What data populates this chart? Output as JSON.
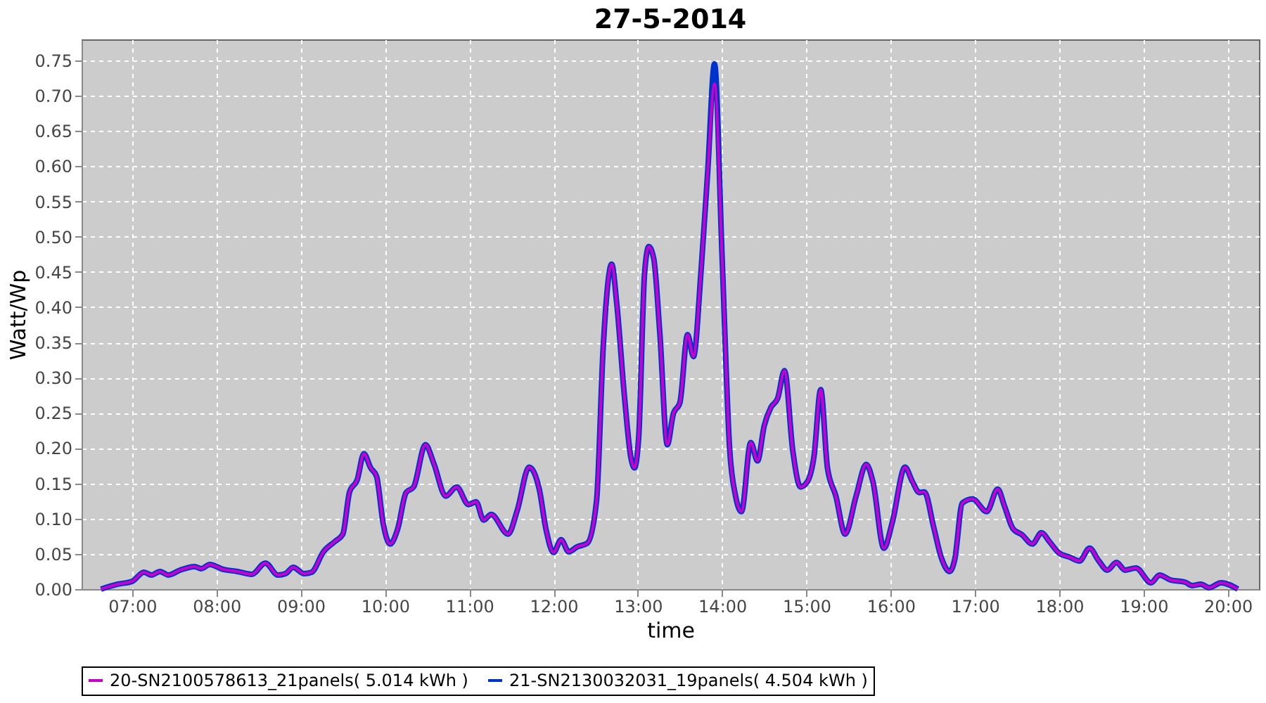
{
  "chart_data": {
    "type": "line",
    "title": "27-5-2014",
    "xlabel": "time",
    "ylabel": "Watt/Wp",
    "xlim": [
      6.4,
      20.37
    ],
    "ylim": [
      0,
      0.78
    ],
    "xticks": [
      {
        "value": 7,
        "label": "07:00"
      },
      {
        "value": 8,
        "label": "08:00"
      },
      {
        "value": 9,
        "label": "09:00"
      },
      {
        "value": 10,
        "label": "10:00"
      },
      {
        "value": 11,
        "label": "11:00"
      },
      {
        "value": 12,
        "label": "12:00"
      },
      {
        "value": 13,
        "label": "13:00"
      },
      {
        "value": 14,
        "label": "14:00"
      },
      {
        "value": 15,
        "label": "15:00"
      },
      {
        "value": 16,
        "label": "16:00"
      },
      {
        "value": 17,
        "label": "17:00"
      },
      {
        "value": 18,
        "label": "18:00"
      },
      {
        "value": 19,
        "label": "19:00"
      },
      {
        "value": 20,
        "label": "20:00"
      }
    ],
    "yticks": [
      {
        "value": 0,
        "label": "0.00"
      },
      0.05,
      {
        "value": 0.1,
        "label": "0.10"
      },
      0.15,
      {
        "value": 0.2,
        "label": "0.20"
      },
      0.25,
      {
        "value": 0.3,
        "label": "0.30"
      },
      0.35,
      {
        "value": 0.4,
        "label": "0.40"
      },
      0.45,
      {
        "value": 0.5,
        "label": "0.50"
      },
      0.55,
      {
        "value": 0.6,
        "label": "0.60"
      },
      0.65,
      {
        "value": 0.7,
        "label": "0.70"
      },
      0.75
    ],
    "x": [
      6.63,
      6.83,
      7.0,
      7.14,
      7.23,
      7.33,
      7.43,
      7.57,
      7.74,
      7.82,
      7.92,
      8.08,
      8.25,
      8.42,
      8.58,
      8.73,
      8.82,
      8.91,
      9.04,
      9.13,
      9.27,
      9.41,
      9.5,
      9.58,
      9.67,
      9.75,
      9.83,
      9.9,
      9.98,
      10.06,
      10.15,
      10.25,
      10.34,
      10.48,
      10.58,
      10.72,
      10.85,
      10.99,
      11.08,
      11.17,
      11.26,
      11.46,
      11.57,
      11.71,
      11.83,
      11.91,
      12.0,
      12.09,
      12.18,
      12.28,
      12.4,
      12.51,
      12.59,
      12.69,
      12.75,
      12.84,
      12.92,
      12.96,
      13.01,
      13.08,
      13.13,
      13.19,
      13.26,
      13.35,
      13.42,
      13.5,
      13.59,
      13.66,
      13.75,
      13.83,
      13.91,
      14.0,
      14.09,
      14.16,
      14.23,
      14.34,
      14.42,
      14.5,
      14.58,
      14.66,
      14.74,
      14.84,
      14.93,
      15.01,
      15.09,
      15.17,
      15.25,
      15.35,
      15.46,
      15.59,
      15.71,
      15.79,
      15.92,
      16.02,
      16.17,
      16.26,
      16.34,
      16.4,
      16.51,
      16.6,
      16.7,
      16.76,
      16.85,
      16.97,
      17.14,
      17.27,
      17.35,
      17.45,
      17.56,
      17.68,
      17.79,
      17.88,
      17.99,
      18.13,
      18.24,
      18.36,
      18.47,
      18.57,
      18.68,
      18.78,
      18.91,
      19.09,
      19.19,
      19.32,
      19.49,
      19.58,
      19.68,
      19.78,
      19.92,
      20.12
    ],
    "series": [
      {
        "name": "20-SN2100578613_21panels( 5.014 kWh )",
        "color": "#cc00cc",
        "values": [
          0.0,
          0.007,
          0.011,
          0.024,
          0.02,
          0.025,
          0.02,
          0.027,
          0.032,
          0.029,
          0.035,
          0.028,
          0.025,
          0.021,
          0.037,
          0.02,
          0.022,
          0.031,
          0.022,
          0.024,
          0.053,
          0.068,
          0.078,
          0.138,
          0.155,
          0.192,
          0.172,
          0.16,
          0.092,
          0.064,
          0.085,
          0.137,
          0.145,
          0.205,
          0.178,
          0.132,
          0.145,
          0.12,
          0.124,
          0.098,
          0.106,
          0.078,
          0.112,
          0.173,
          0.142,
          0.085,
          0.052,
          0.07,
          0.053,
          0.06,
          0.065,
          0.125,
          0.345,
          0.461,
          0.405,
          0.275,
          0.185,
          0.172,
          0.215,
          0.448,
          0.486,
          0.468,
          0.365,
          0.205,
          0.248,
          0.265,
          0.361,
          0.33,
          0.451,
          0.594,
          0.717,
          0.471,
          0.198,
          0.132,
          0.11,
          0.208,
          0.182,
          0.232,
          0.258,
          0.271,
          0.31,
          0.195,
          0.145,
          0.152,
          0.188,
          0.283,
          0.172,
          0.132,
          0.078,
          0.132,
          0.177,
          0.152,
          0.058,
          0.095,
          0.173,
          0.152,
          0.137,
          0.138,
          0.088,
          0.045,
          0.025,
          0.042,
          0.122,
          0.128,
          0.11,
          0.142,
          0.118,
          0.086,
          0.077,
          0.064,
          0.08,
          0.068,
          0.052,
          0.045,
          0.04,
          0.058,
          0.04,
          0.027,
          0.038,
          0.027,
          0.03,
          0.009,
          0.02,
          0.013,
          0.01,
          0.005,
          0.007,
          0.002,
          0.009,
          0.0
        ]
      },
      {
        "name": "21-SN2130032031_19panels( 4.504 kWh )",
        "color": "#0033cc",
        "values": [
          0.0,
          0.007,
          0.011,
          0.024,
          0.02,
          0.025,
          0.02,
          0.027,
          0.032,
          0.029,
          0.035,
          0.028,
          0.025,
          0.021,
          0.037,
          0.02,
          0.022,
          0.031,
          0.022,
          0.024,
          0.053,
          0.068,
          0.078,
          0.138,
          0.155,
          0.192,
          0.172,
          0.16,
          0.092,
          0.064,
          0.085,
          0.137,
          0.145,
          0.205,
          0.178,
          0.132,
          0.145,
          0.12,
          0.124,
          0.098,
          0.106,
          0.078,
          0.112,
          0.173,
          0.142,
          0.085,
          0.052,
          0.07,
          0.053,
          0.06,
          0.065,
          0.125,
          0.345,
          0.461,
          0.405,
          0.275,
          0.185,
          0.172,
          0.215,
          0.448,
          0.486,
          0.468,
          0.365,
          0.205,
          0.248,
          0.265,
          0.361,
          0.33,
          0.451,
          0.594,
          0.745,
          0.471,
          0.198,
          0.132,
          0.11,
          0.208,
          0.182,
          0.232,
          0.258,
          0.271,
          0.31,
          0.195,
          0.145,
          0.152,
          0.188,
          0.283,
          0.172,
          0.132,
          0.078,
          0.132,
          0.177,
          0.152,
          0.058,
          0.095,
          0.173,
          0.152,
          0.137,
          0.138,
          0.088,
          0.045,
          0.025,
          0.042,
          0.122,
          0.128,
          0.11,
          0.142,
          0.118,
          0.086,
          0.077,
          0.064,
          0.08,
          0.068,
          0.052,
          0.045,
          0.04,
          0.058,
          0.04,
          0.027,
          0.038,
          0.027,
          0.03,
          0.009,
          0.02,
          0.013,
          0.01,
          0.005,
          0.007,
          0.002,
          0.009,
          0.0
        ]
      }
    ],
    "grid": true,
    "legend": "bottom",
    "marker": "none",
    "line_style": "solid"
  }
}
